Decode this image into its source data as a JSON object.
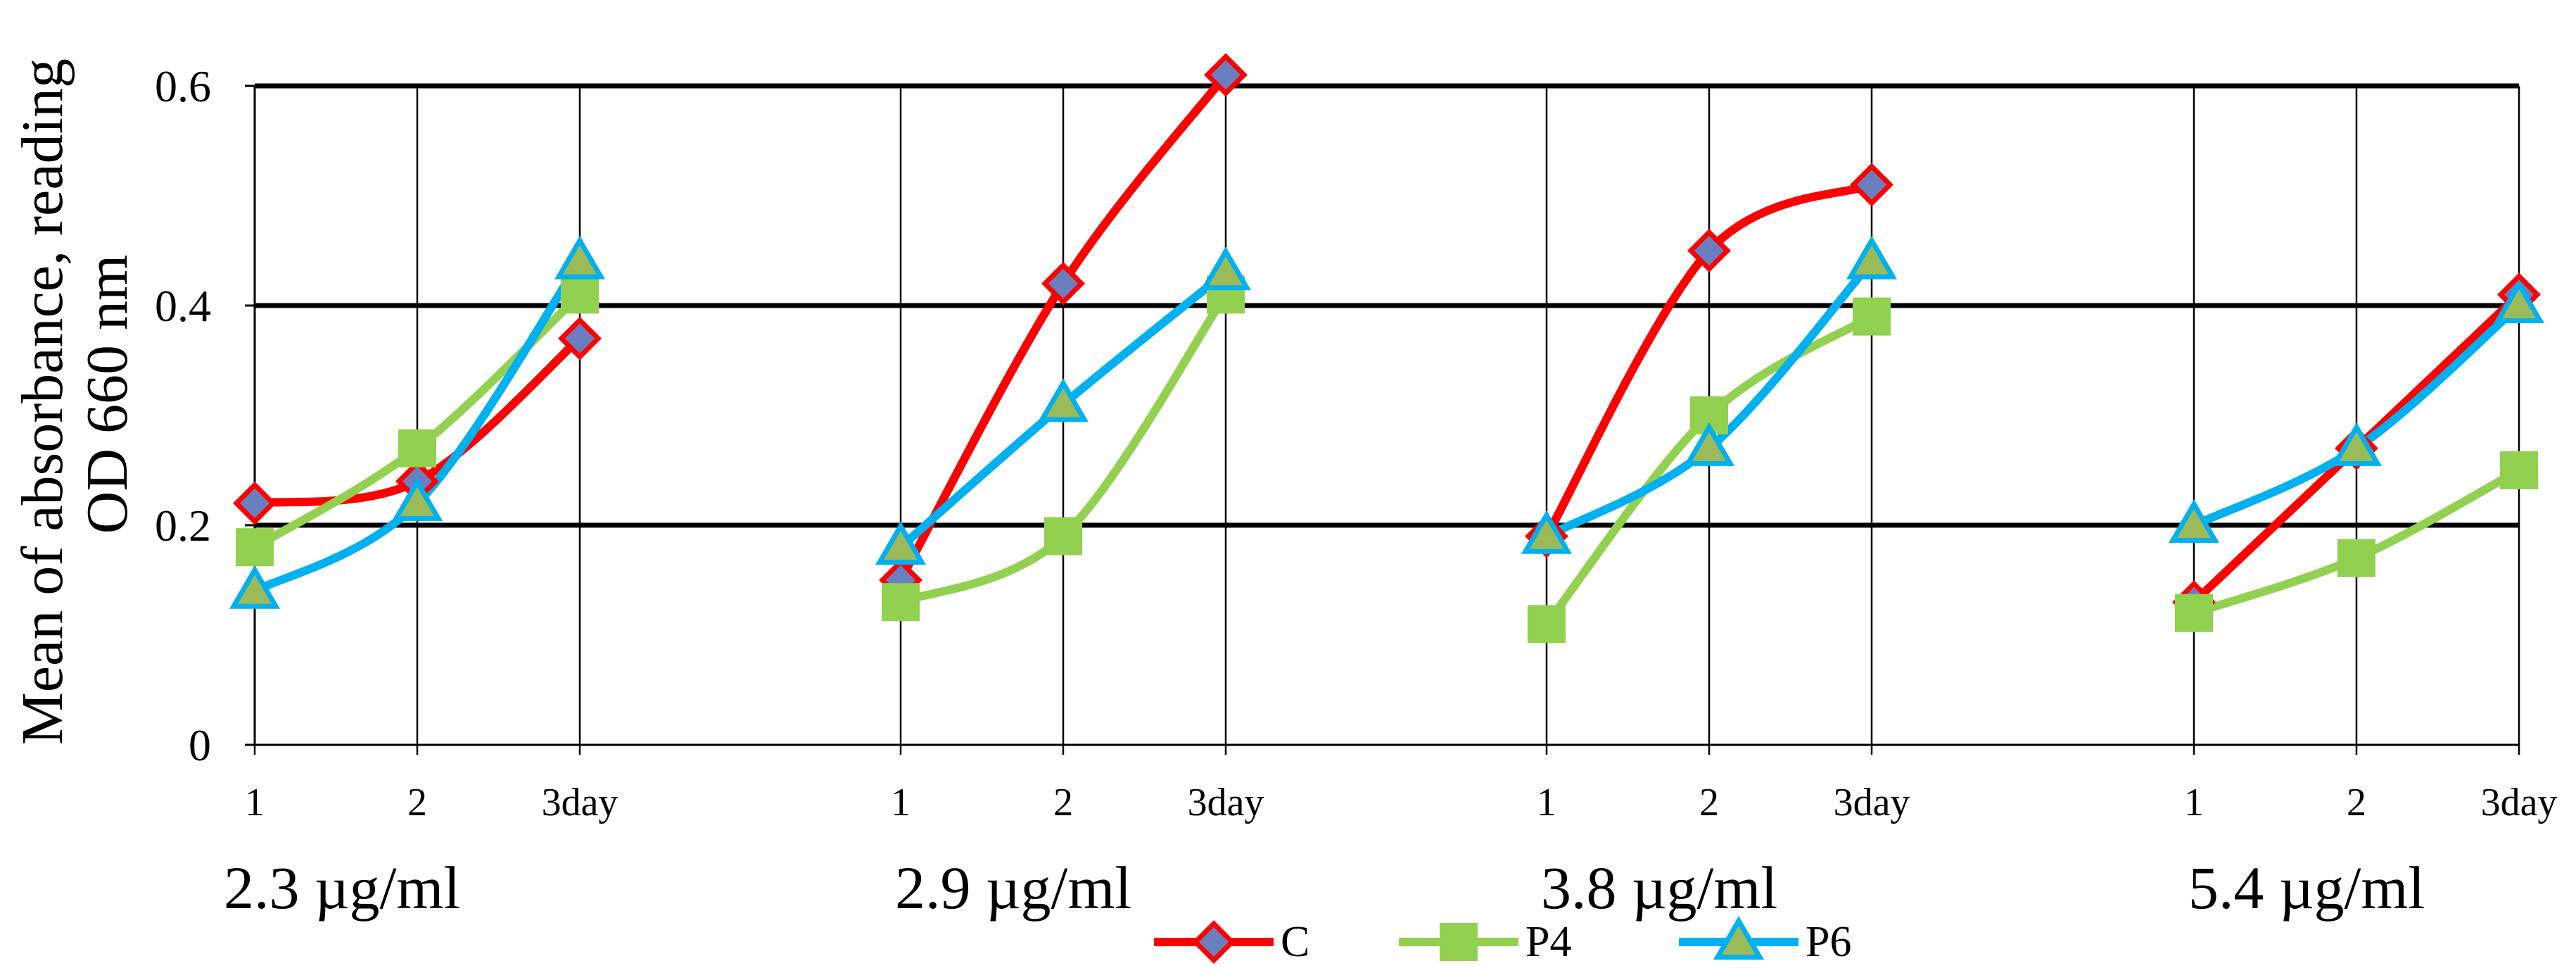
{
  "chart_data": {
    "type": "line",
    "ylabel": "Mean of absorbance, reading OD 660 nm",
    "ylim": [
      0,
      0.6
    ],
    "yticks": [
      0,
      0.2,
      0.4,
      0.6
    ],
    "ytick_labels": [
      "0",
      "0.2",
      "0.4",
      "0.6"
    ],
    "x_tick_labels": [
      "1",
      "2",
      "3day"
    ],
    "groups": [
      "2.3 µg/ml",
      "2.9 µg/ml",
      "3.8 µg/ml",
      "5.4 µg/ml"
    ],
    "colors": {
      "C": "#ff0000",
      "P4": "#92d050",
      "P6": "#00b0f0",
      "marker_fill_C": "#6a7fbf",
      "marker_fill_P6": "#9bbb59"
    },
    "series": [
      {
        "name": "C",
        "marker": "diamond",
        "values": [
          [
            0.22,
            0.24,
            0.37
          ],
          [
            0.15,
            0.42,
            0.61
          ],
          [
            0.19,
            0.45,
            0.51
          ],
          [
            0.13,
            0.27,
            0.41
          ]
        ]
      },
      {
        "name": "P4",
        "marker": "square",
        "values": [
          [
            0.18,
            0.27,
            0.41
          ],
          [
            0.13,
            0.19,
            0.41
          ],
          [
            0.11,
            0.3,
            0.39
          ],
          [
            0.12,
            0.17,
            0.25
          ]
        ]
      },
      {
        "name": "P6",
        "marker": "triangle",
        "values": [
          [
            0.14,
            0.22,
            0.44
          ],
          [
            0.18,
            0.31,
            0.43
          ],
          [
            0.19,
            0.27,
            0.44
          ],
          [
            0.2,
            0.27,
            0.4
          ]
        ]
      }
    ]
  }
}
